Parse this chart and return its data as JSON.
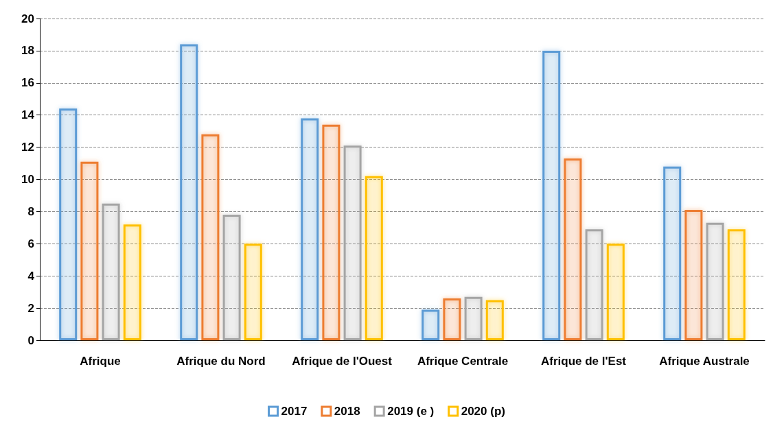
{
  "chart_data": {
    "type": "bar",
    "categories": [
      "Afrique",
      "Afrique du Nord",
      "Afrique de l'Ouest",
      "Afrique Centrale",
      "Afrique de l'Est",
      "Afrique Australe"
    ],
    "series": [
      {
        "name": "2017",
        "color": "#5b9bd5",
        "values": [
          14.4,
          18.4,
          13.8,
          1.9,
          18.0,
          10.8
        ]
      },
      {
        "name": "2018",
        "color": "#ed7d31",
        "values": [
          11.1,
          12.8,
          13.4,
          2.6,
          11.3,
          8.1
        ]
      },
      {
        "name": "2019 (e )",
        "color": "#a5a5a5",
        "values": [
          8.5,
          7.8,
          12.1,
          2.7,
          6.9,
          7.3
        ]
      },
      {
        "name": "2020 (p)",
        "color": "#ffc000",
        "values": [
          7.2,
          6.0,
          10.2,
          2.5,
          6.0,
          6.9
        ]
      }
    ],
    "ylim": [
      0,
      20
    ],
    "yticks": [
      0,
      2,
      4,
      6,
      8,
      10,
      12,
      14,
      16,
      18,
      20
    ],
    "grid": "y",
    "legend": "bottom"
  }
}
